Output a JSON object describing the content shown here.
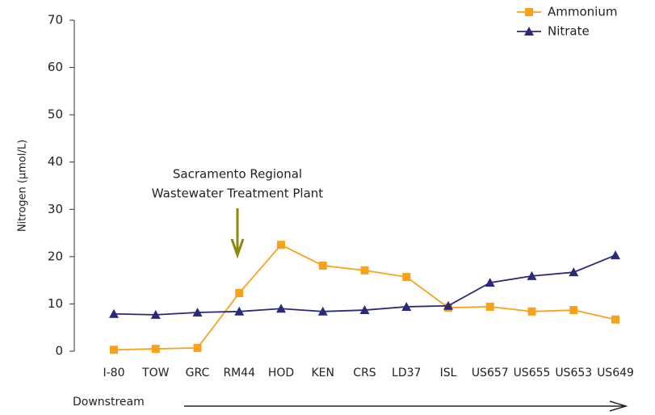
{
  "chart_data": {
    "type": "line",
    "ylabel": "Nitrogen (µmol/L)",
    "xlabel": "Downstream",
    "annotation": [
      "Sacramento Regional",
      "Wastewater Treatment Plant"
    ],
    "categories": [
      "I-80",
      "TOW",
      "GRC",
      "RM44",
      "HOD",
      "KEN",
      "CRS",
      "LD37",
      "ISL",
      "US657",
      "US655",
      "US653",
      "US649"
    ],
    "series": [
      {
        "name": "Ammonium",
        "color": "#f7a21b",
        "marker": "square",
        "values": [
          0.3,
          0.5,
          0.7,
          12.3,
          22.5,
          18.1,
          17.1,
          15.7,
          9.2,
          9.4,
          8.4,
          8.7,
          6.7
        ]
      },
      {
        "name": "Nitrate",
        "color": "#2b2a7a",
        "marker": "triangle",
        "values": [
          7.9,
          7.7,
          8.2,
          8.4,
          9.0,
          8.4,
          8.7,
          9.4,
          9.6,
          14.5,
          15.9,
          16.7,
          20.3
        ]
      }
    ],
    "ylim": [
      0,
      70
    ],
    "yticks": [
      0,
      10,
      20,
      30,
      40,
      50,
      60,
      70
    ],
    "grid": false,
    "legend": "top-right"
  }
}
